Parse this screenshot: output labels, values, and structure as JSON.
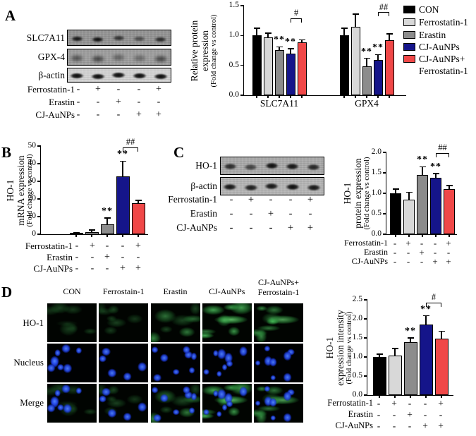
{
  "figure": {
    "panel_labels": {
      "a": "A",
      "b": "B",
      "c": "C",
      "d": "D"
    }
  },
  "colors": {
    "con": "#000000",
    "ferrostatin": "#d8d8d8",
    "erastin": "#8c8c8c",
    "cj_aunps": "#15158a",
    "cj_aunps_fer": "#f04848"
  },
  "treatments": {
    "rows": [
      {
        "label": "Ferrostatin-1",
        "values": [
          "-",
          "+",
          "-",
          "-",
          "+"
        ]
      },
      {
        "label": "Erastin",
        "values": [
          "-",
          "-",
          "+",
          "-",
          "-"
        ]
      },
      {
        "label": "CJ-AuNPs",
        "values": [
          "-",
          "-",
          "-",
          "+",
          "+"
        ]
      }
    ]
  },
  "panelA": {
    "blot_labels": [
      "SLC7A11",
      "GPX-4",
      "β-actin"
    ],
    "band_intensities": [
      [
        0.95,
        1.0,
        0.75,
        0.55,
        0.8
      ],
      [
        0.55,
        0.65,
        0.45,
        0.4,
        0.65
      ],
      [
        1.0,
        1.0,
        1.0,
        1.0,
        1.0
      ]
    ]
  },
  "panelC": {
    "blot_labels": [
      "HO-1",
      "β-actin"
    ],
    "band_intensities": [
      [
        0.8,
        0.65,
        1.0,
        0.95,
        0.85
      ],
      [
        0.95,
        0.9,
        0.95,
        1.0,
        0.95
      ]
    ]
  },
  "legend": {
    "entries": [
      {
        "label": "CON",
        "color": "#000000"
      },
      {
        "label": "Ferrostatin-1",
        "color": "#d8d8d8"
      },
      {
        "label": "Erastin",
        "color": "#8c8c8c"
      },
      {
        "label": "CJ-AuNPs",
        "color": "#15158a"
      },
      {
        "label": "CJ-AuNPs+\nFerrostatin-1",
        "color": "#f04848"
      }
    ]
  },
  "chart_data": [
    {
      "id": "A",
      "type": "bar",
      "ylabel_lines": [
        "Relative protein",
        "expression",
        "(Fold change vs control)"
      ],
      "ylim": [
        0,
        1.5
      ],
      "yticks": [
        "0.0",
        "0.5",
        "1.0",
        "1.5"
      ],
      "categories": [
        "SLC7A11",
        "GPX4"
      ],
      "series": [
        {
          "name": "CON",
          "color": "#000000",
          "values": [
            1.0,
            1.0
          ],
          "errors": [
            0.12,
            0.12
          ]
        },
        {
          "name": "Ferrostatin-1",
          "color": "#d8d8d8",
          "values": [
            0.97,
            1.15
          ],
          "errors": [
            0.07,
            0.21
          ]
        },
        {
          "name": "Erastin",
          "color": "#8c8c8c",
          "values": [
            0.76,
            0.49
          ],
          "errors": [
            0.05,
            0.13
          ],
          "sig": [
            "**",
            "**"
          ]
        },
        {
          "name": "CJ-AuNPs",
          "color": "#15158a",
          "values": [
            0.7,
            0.59
          ],
          "errors": [
            0.08,
            0.09
          ],
          "sig": [
            "**",
            "**"
          ]
        },
        {
          "name": "CJ-AuNPs+Ferrostatin-1",
          "color": "#f04848",
          "values": [
            0.89,
            0.92
          ],
          "errors": [
            0.04,
            0.11
          ]
        }
      ],
      "brackets": [
        {
          "group": 0,
          "from": 3,
          "to": 4,
          "label": "#",
          "y": 1.22
        },
        {
          "group": 1,
          "from": 3,
          "to": 4,
          "label": "##",
          "y": 1.32
        }
      ]
    },
    {
      "id": "B",
      "type": "bar",
      "ylabel_lines": [
        "HO-1",
        "mRNA expression",
        "(Fold change vs control)"
      ],
      "ylim": [
        0,
        50
      ],
      "yticks": [
        "0",
        "10",
        "20",
        "30",
        "40",
        "50"
      ],
      "categories": [
        ""
      ],
      "series": [
        {
          "name": "CON",
          "color": "#000000",
          "values": [
            0.8
          ],
          "errors": [
            0.3
          ]
        },
        {
          "name": "Ferrostatin-1",
          "color": "#d8d8d8",
          "values": [
            1.2
          ],
          "errors": [
            1.2
          ]
        },
        {
          "name": "Erastin",
          "color": "#8c8c8c",
          "values": [
            5.5
          ],
          "errors": [
            3.8
          ],
          "sig": [
            "**"
          ]
        },
        {
          "name": "CJ-AuNPs",
          "color": "#15158a",
          "values": [
            33
          ],
          "errors": [
            8.5
          ],
          "sig": [
            "**"
          ]
        },
        {
          "name": "CJ-AuNPs+Ferrostatin-1",
          "color": "#f04848",
          "values": [
            17.5
          ],
          "errors": [
            1.8
          ]
        }
      ],
      "brackets": [
        {
          "group": 0,
          "from": 3,
          "to": 4,
          "label": "##",
          "y": 47
        }
      ]
    },
    {
      "id": "C",
      "type": "bar",
      "ylabel_lines": [
        "HO-1",
        "protein expression",
        "(Fold change vs control)"
      ],
      "ylim": [
        0,
        2.0
      ],
      "yticks": [
        "0.0",
        "0.5",
        "1.0",
        "1.5",
        "2.0"
      ],
      "categories": [
        ""
      ],
      "series": [
        {
          "name": "CON",
          "color": "#000000",
          "values": [
            1.0
          ],
          "errors": [
            0.1
          ]
        },
        {
          "name": "Ferrostatin-1",
          "color": "#d8d8d8",
          "values": [
            0.85
          ],
          "errors": [
            0.18
          ]
        },
        {
          "name": "Erastin",
          "color": "#8c8c8c",
          "values": [
            1.45
          ],
          "errors": [
            0.2
          ],
          "sig": [
            "**"
          ]
        },
        {
          "name": "CJ-AuNPs",
          "color": "#15158a",
          "values": [
            1.38
          ],
          "errors": [
            0.1
          ],
          "sig": [
            "**"
          ]
        },
        {
          "name": "CJ-AuNPs+Ferrostatin-1",
          "color": "#f04848",
          "values": [
            1.1
          ],
          "errors": [
            0.09
          ]
        }
      ],
      "brackets": [
        {
          "group": 0,
          "from": 3,
          "to": 4,
          "label": "##",
          "y": 1.88
        }
      ]
    },
    {
      "id": "D",
      "type": "bar",
      "ylabel_lines": [
        "HO-1",
        "expression intensity",
        "(Fold change vs control)"
      ],
      "ylim": [
        0,
        2.5
      ],
      "yticks": [
        "0.0",
        "0.5",
        "1.0",
        "1.5",
        "2.0",
        "2.5"
      ],
      "categories": [
        ""
      ],
      "series": [
        {
          "name": "CON",
          "color": "#000000",
          "values": [
            1.0
          ],
          "errors": [
            0.07
          ]
        },
        {
          "name": "Ferrostatin-1",
          "color": "#d8d8d8",
          "values": [
            1.04
          ],
          "errors": [
            0.18
          ]
        },
        {
          "name": "Erastin",
          "color": "#8c8c8c",
          "values": [
            1.38
          ],
          "errors": [
            0.12
          ],
          "sig": [
            "**"
          ]
        },
        {
          "name": "CJ-AuNPs",
          "color": "#15158a",
          "values": [
            1.85
          ],
          "errors": [
            0.23
          ],
          "sig": [
            "**"
          ]
        },
        {
          "name": "CJ-AuNPs+Ferrostatin-1",
          "color": "#f04848",
          "values": [
            1.48
          ],
          "errors": [
            0.2
          ]
        }
      ],
      "brackets": [
        {
          "group": 0,
          "from": 3,
          "to": 4,
          "label": "#",
          "y": 2.32
        }
      ]
    }
  ],
  "panelD": {
    "column_headers": [
      "CON",
      "Ferrostain-1",
      "Erastin",
      "CJ-AuNPs",
      "CJ-AuNPs+\nFerrostain-1"
    ],
    "row_labels": [
      "HO-1",
      "Nucleus",
      "Merge"
    ],
    "green_intensity": [
      0.3,
      0.33,
      0.62,
      0.95,
      0.8
    ]
  }
}
